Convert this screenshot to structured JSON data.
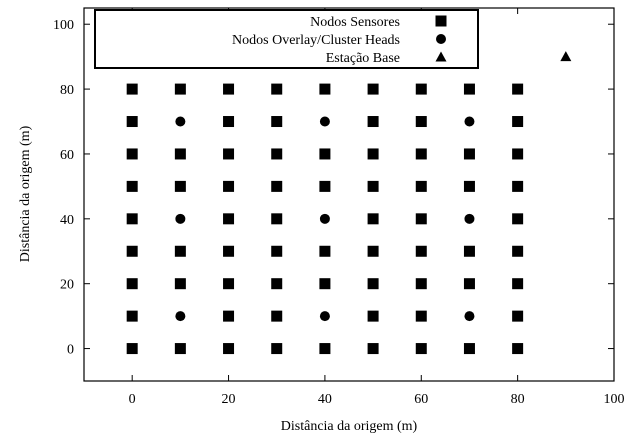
{
  "chart_data": {
    "type": "scatter",
    "xlabel": "Distância da origem (m)",
    "ylabel": "Distância da origem (m)",
    "xlim": [
      -10,
      100
    ],
    "ylim": [
      -10,
      105
    ],
    "x_ticks": [
      0,
      20,
      40,
      60,
      80,
      100
    ],
    "y_ticks": [
      0,
      20,
      40,
      60,
      80,
      100
    ],
    "grid": false,
    "legend_position": "top-left",
    "series": [
      {
        "name": "Nodos Sensores",
        "marker": "square",
        "x": [
          0,
          10,
          20,
          30,
          40,
          50,
          60,
          70,
          80,
          0,
          20,
          30,
          50,
          60,
          80,
          0,
          10,
          20,
          30,
          40,
          50,
          60,
          70,
          80,
          0,
          10,
          20,
          30,
          40,
          50,
          60,
          70,
          80,
          0,
          20,
          30,
          50,
          60,
          80,
          0,
          10,
          20,
          30,
          40,
          50,
          60,
          70,
          80,
          0,
          10,
          20,
          30,
          40,
          50,
          60,
          70,
          80,
          0,
          20,
          30,
          50,
          60,
          80,
          0,
          10,
          20,
          30,
          40,
          50,
          60,
          70,
          80
        ],
        "y": [
          80,
          80,
          80,
          80,
          80,
          80,
          80,
          80,
          80,
          70,
          70,
          70,
          70,
          70,
          70,
          60,
          60,
          60,
          60,
          60,
          60,
          60,
          60,
          60,
          50,
          50,
          50,
          50,
          50,
          50,
          50,
          50,
          50,
          40,
          40,
          40,
          40,
          40,
          40,
          30,
          30,
          30,
          30,
          30,
          30,
          30,
          30,
          30,
          20,
          20,
          20,
          20,
          20,
          20,
          20,
          20,
          20,
          10,
          10,
          10,
          10,
          10,
          10,
          0,
          0,
          0,
          0,
          0,
          0,
          0,
          0,
          0
        ]
      },
      {
        "name": "Nodos Overlay/Cluster Heads",
        "marker": "circle",
        "x": [
          10,
          40,
          70,
          10,
          40,
          70,
          10,
          40,
          70
        ],
        "y": [
          70,
          70,
          70,
          40,
          40,
          40,
          10,
          10,
          10
        ]
      },
      {
        "name": "Estação Base",
        "marker": "triangle",
        "x": [
          90
        ],
        "y": [
          90
        ]
      }
    ]
  }
}
